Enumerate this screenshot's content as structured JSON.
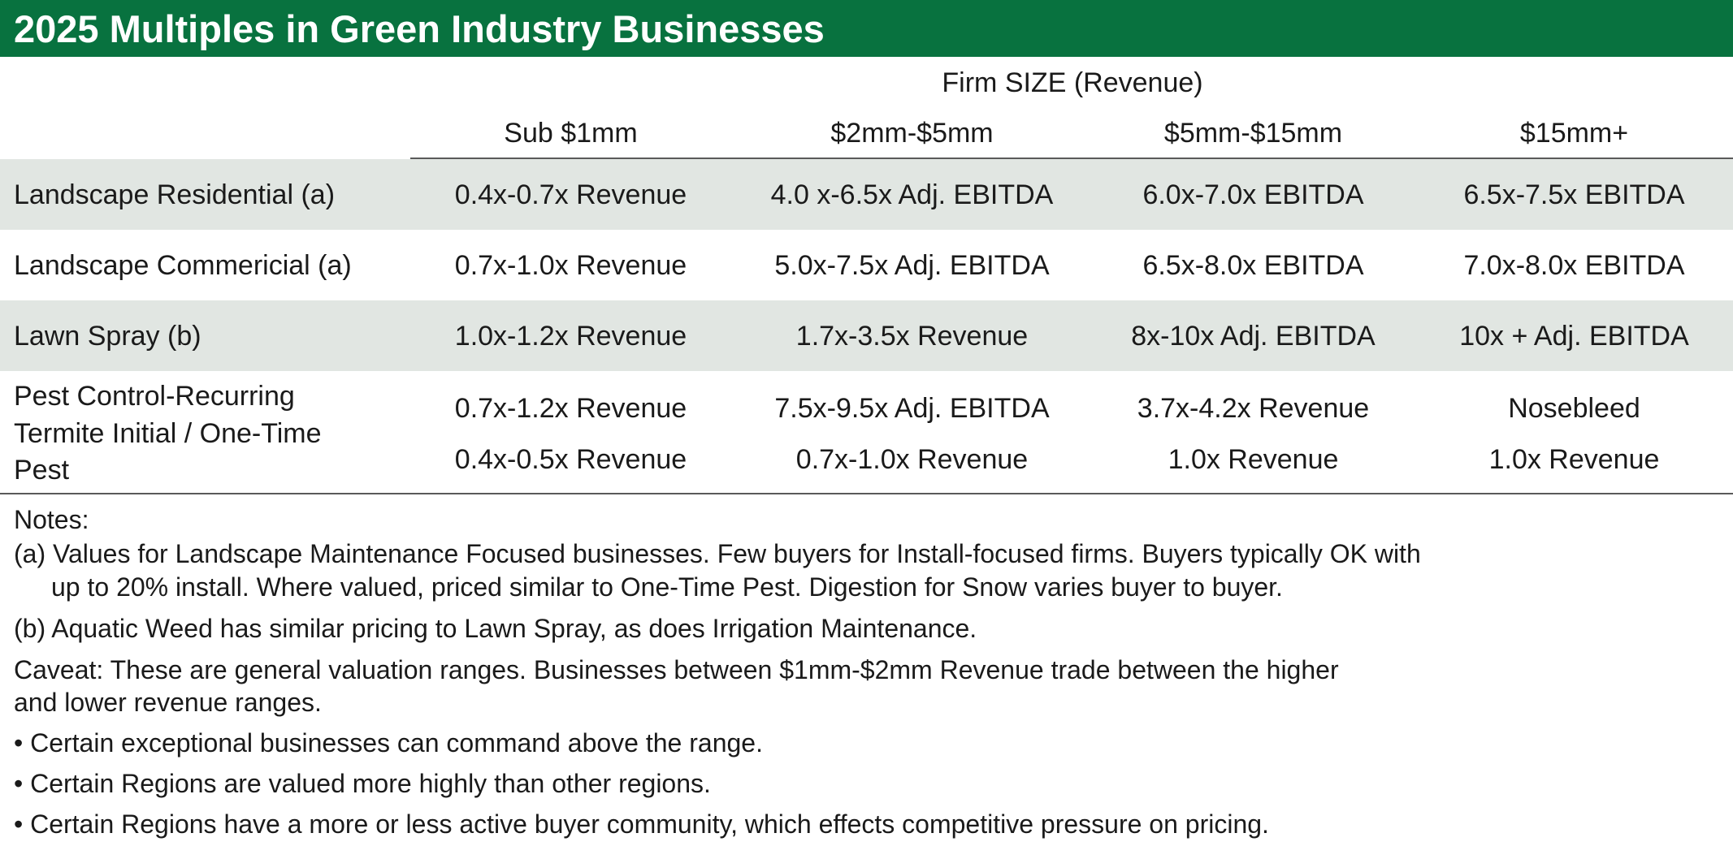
{
  "title": "2025 Multiples in Green Industry Businesses",
  "group_header": "Firm SIZE (Revenue)",
  "columns": [
    "Sub $1mm",
    "$2mm-$5mm",
    "$5mm-$15mm",
    "$15mm+"
  ],
  "rows": [
    {
      "label": "Landscape Residential (a)",
      "values": [
        "0.4x-0.7x Revenue",
        "4.0 x-6.5x Adj. EBITDA",
        "6.0x-7.0x EBITDA",
        "6.5x-7.5x EBITDA"
      ]
    },
    {
      "label": "Landscape Commericial (a)",
      "values": [
        "0.7x-1.0x Revenue",
        "5.0x-7.5x Adj. EBITDA",
        "6.5x-8.0x EBITDA",
        "7.0x-8.0x EBITDA"
      ]
    },
    {
      "label": "Lawn Spray (b)",
      "values": [
        "1.0x-1.2x Revenue",
        "1.7x-3.5x Revenue",
        "8x-10x Adj. EBITDA",
        "10x + Adj. EBITDA"
      ]
    },
    {
      "label_lines": [
        "Pest Control-Recurring",
        "Termite Initial / One-Time",
        "Pest"
      ],
      "values": [
        "0.7x-1.2x Revenue",
        "7.5x-9.5x Adj. EBITDA",
        "3.7x-4.2x Revenue",
        "Nosebleed"
      ],
      "values_2": [
        "0.4x-0.5x Revenue",
        "0.7x-1.0x Revenue",
        "1.0x Revenue",
        "1.0x Revenue"
      ]
    }
  ],
  "notes": {
    "heading": "Notes:",
    "a_line1": "(a) Values for Landscape Maintenance Focused businesses. Few buyers for Install-focused firms. Buyers typically OK with",
    "a_line2": "up to 20% install. Where valued, priced similar to One-Time Pest. Digestion for Snow varies buyer to buyer.",
    "b": "(b) Aquatic Weed has similar pricing to Lawn Spray, as does Irrigation Maintenance.",
    "caveat_line1": "Caveat: These are general valuation ranges. Businesses between $1mm-$2mm Revenue trade between the higher",
    "caveat_line2": "and lower revenue ranges.",
    "bullets": [
      "• Certain exceptional businesses can command above the range.",
      "• Certain Regions are valued more highly than other regions.",
      "• Certain Regions have a more or less active buyer community, which effects competitive pressure on pricing."
    ]
  },
  "colors": {
    "title_bar": "#08723f",
    "band": "#e1e6e2"
  }
}
